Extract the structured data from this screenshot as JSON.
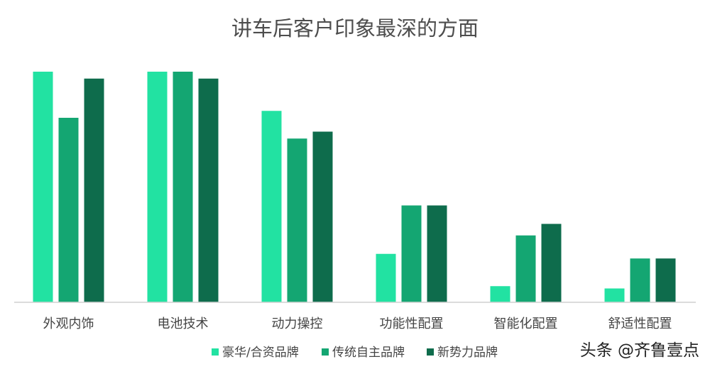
{
  "chart_data": {
    "type": "bar",
    "title": "讲车后客户印象最深的方面",
    "categories": [
      "外观内饰",
      "电池技术",
      "动力操控",
      "功能性配置",
      "智能化配置",
      "舒适性配置"
    ],
    "series": [
      {
        "name": "豪华/合资品牌",
        "color": "#22e2a2",
        "values": [
          100,
          100,
          83,
          21,
          7,
          6
        ]
      },
      {
        "name": "传统自主品牌",
        "color": "#14a672",
        "values": [
          80,
          100,
          71,
          42,
          29,
          19
        ]
      },
      {
        "name": "新势力品牌",
        "color": "#0e6c4c",
        "values": [
          97,
          97,
          74,
          42,
          34,
          19
        ]
      }
    ],
    "ylim": [
      0,
      100
    ],
    "grid": false,
    "legend_position": "bottom",
    "axis_color": "#d0d0d0"
  },
  "watermark": {
    "text": "头条 @齐鲁壹点"
  }
}
